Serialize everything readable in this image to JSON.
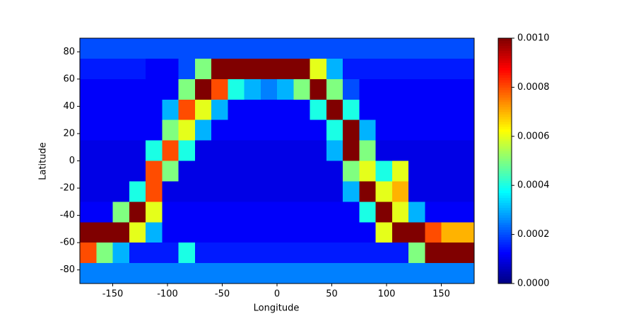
{
  "chart_data": {
    "type": "heatmap",
    "xlabel": "Longitude",
    "ylabel": "Latitude",
    "xlim": [
      -180,
      180
    ],
    "ylim": [
      -90,
      90
    ],
    "xticks": [
      -150,
      -100,
      -50,
      0,
      50,
      100,
      150
    ],
    "yticks": [
      -80,
      -60,
      -40,
      -20,
      0,
      20,
      40,
      60,
      80
    ],
    "clim": [
      0,
      0.001
    ],
    "cticks": [
      {
        "value": 0,
        "label": "0.0000"
      },
      0.0002,
      0.0004,
      0.0006,
      0.0008,
      {
        "value": 0.001,
        "label": "0.0010"
      }
    ],
    "colormap": "jet",
    "z": [
      [
        0.0002,
        0.0002,
        0.0002,
        0.0002,
        0.0002,
        0.0002,
        0.0002,
        0.0002,
        0.0002,
        0.0002,
        0.0002,
        0.0002,
        0.0002,
        0.0002,
        0.0002,
        0.0002,
        0.0002,
        0.0002,
        0.0002,
        0.0002,
        0.0002,
        0.0002,
        0.0002,
        0.0002
      ],
      [
        0.00015,
        0.00015,
        0.00015,
        0.00015,
        0.00012,
        0.00012,
        0.0002,
        0.0005,
        0.001,
        0.001,
        0.001,
        0.001,
        0.001,
        0.001,
        0.0006,
        0.0003,
        0.00015,
        0.00015,
        0.00015,
        0.00015,
        0.00015,
        0.00015,
        0.00015,
        0.00015
      ],
      [
        0.00012,
        0.00012,
        0.00012,
        0.00012,
        0.00012,
        0.00012,
        0.0005,
        0.001,
        0.0008,
        0.0004,
        0.0003,
        0.00025,
        0.0003,
        0.0005,
        0.001,
        0.0005,
        0.0002,
        0.00012,
        0.00012,
        0.00012,
        0.00012,
        0.00012,
        0.00012,
        0.00012
      ],
      [
        0.00012,
        0.00012,
        0.00012,
        0.00012,
        0.00012,
        0.0003,
        0.0008,
        0.0006,
        0.0003,
        0.00012,
        0.00012,
        0.00012,
        0.00012,
        0.00012,
        0.0004,
        0.001,
        0.0004,
        0.00012,
        0.00012,
        0.00012,
        0.00012,
        0.00012,
        0.00012,
        0.00012
      ],
      [
        0.00012,
        0.00012,
        0.00012,
        0.00012,
        0.00012,
        0.0005,
        0.0006,
        0.0003,
        0.00012,
        0.00012,
        0.00012,
        0.00012,
        0.00012,
        0.00012,
        0.00012,
        0.0004,
        0.001,
        0.0003,
        0.00012,
        0.00012,
        0.00012,
        0.00012,
        0.00012,
        0.00012
      ],
      [
        0.0001,
        0.0001,
        0.0001,
        0.0001,
        0.0004,
        0.0008,
        0.0004,
        0.0001,
        0.0001,
        0.0001,
        0.0001,
        0.0001,
        0.0001,
        0.0001,
        0.0001,
        0.0003,
        0.001,
        0.0005,
        0.0001,
        0.0001,
        0.0001,
        0.0001,
        0.0001,
        0.0001
      ],
      [
        0.0001,
        0.0001,
        0.0001,
        0.0001,
        0.0008,
        0.0005,
        0.0001,
        0.0001,
        0.0001,
        0.0001,
        0.0001,
        0.0001,
        0.0001,
        0.0001,
        0.0001,
        0.0001,
        0.0005,
        0.0006,
        0.0004,
        0.0006,
        0.0001,
        0.0001,
        0.0001,
        0.0001
      ],
      [
        0.0001,
        0.0001,
        0.0001,
        0.0004,
        0.0008,
        0.0001,
        0.0001,
        0.0001,
        0.0001,
        0.0001,
        0.0001,
        0.0001,
        0.0001,
        0.0001,
        0.0001,
        0.0001,
        0.0003,
        0.001,
        0.0006,
        0.0007,
        0.0001,
        0.0001,
        0.0001,
        0.0001
      ],
      [
        0.00012,
        0.00012,
        0.0005,
        0.001,
        0.0006,
        0.00012,
        0.00012,
        0.00012,
        0.00012,
        0.00012,
        0.00012,
        0.00012,
        0.00012,
        0.00012,
        0.00012,
        0.00012,
        0.00012,
        0.0004,
        0.001,
        0.0006,
        0.0003,
        0.00012,
        0.00012,
        0.00012
      ],
      [
        0.001,
        0.001,
        0.001,
        0.0006,
        0.0003,
        0.00012,
        0.00012,
        0.00012,
        0.00012,
        0.00012,
        0.00012,
        0.00012,
        0.00012,
        0.00012,
        0.00012,
        0.00012,
        0.00012,
        0.00012,
        0.0006,
        0.001,
        0.001,
        0.0008,
        0.0007,
        0.0007
      ],
      [
        0.0008,
        0.0005,
        0.0003,
        0.00015,
        0.00015,
        0.00015,
        0.0004,
        0.00015,
        0.00015,
        0.00015,
        0.00015,
        0.00015,
        0.00015,
        0.00015,
        0.00015,
        0.00015,
        0.00015,
        0.00015,
        0.00015,
        0.00015,
        0.0005,
        0.001,
        0.001,
        0.001
      ],
      [
        0.00025,
        0.00025,
        0.00025,
        0.00025,
        0.00025,
        0.00025,
        0.00025,
        0.00025,
        0.00025,
        0.00025,
        0.00025,
        0.00025,
        0.00025,
        0.00025,
        0.00025,
        0.00025,
        0.00025,
        0.00025,
        0.00025,
        0.00025,
        0.00025,
        0.00025,
        0.00025,
        0.00025
      ]
    ]
  }
}
